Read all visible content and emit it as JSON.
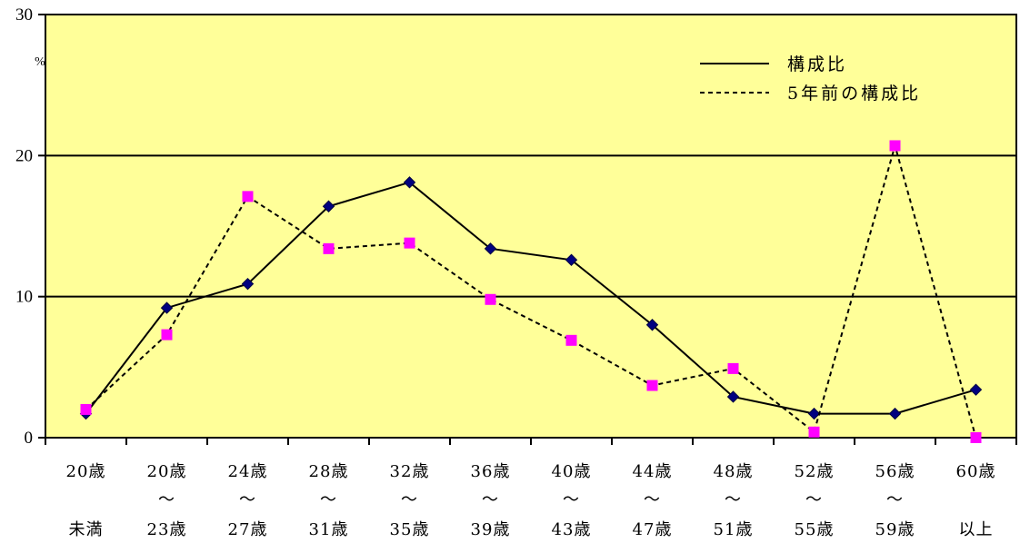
{
  "chart_data": {
    "type": "line",
    "unit_label": "%",
    "y_ticks": [
      "0",
      "10",
      "20",
      "30"
    ],
    "ylim": [
      0,
      30
    ],
    "grid": true,
    "legend_position": "top-right",
    "categories": [
      {
        "line1": "20歳",
        "line2": "",
        "line3": "未満"
      },
      {
        "line1": "20歳",
        "line2": "～",
        "line3": "23歳"
      },
      {
        "line1": "24歳",
        "line2": "～",
        "line3": "27歳"
      },
      {
        "line1": "28歳",
        "line2": "～",
        "line3": "31歳"
      },
      {
        "line1": "32歳",
        "line2": "～",
        "line3": "35歳"
      },
      {
        "line1": "36歳",
        "line2": "～",
        "line3": "39歳"
      },
      {
        "line1": "40歳",
        "line2": "～",
        "line3": "43歳"
      },
      {
        "line1": "44歳",
        "line2": "～",
        "line3": "47歳"
      },
      {
        "line1": "48歳",
        "line2": "～",
        "line3": "51歳"
      },
      {
        "line1": "52歳",
        "line2": "～",
        "line3": "55歳"
      },
      {
        "line1": "56歳",
        "line2": "～",
        "line3": "59歳"
      },
      {
        "line1": "60歳",
        "line2": "",
        "line3": "以上"
      }
    ],
    "series": [
      {
        "name": "構成比",
        "style": "solid",
        "marker": "diamond",
        "color": "#000080",
        "values": [
          1.7,
          9.2,
          10.9,
          16.4,
          18.1,
          13.4,
          12.6,
          8.0,
          2.9,
          1.7,
          1.7,
          3.4
        ]
      },
      {
        "name": "5年前の構成比",
        "style": "dashed",
        "marker": "square",
        "color": "#ff00ff",
        "values": [
          2.0,
          7.3,
          17.1,
          13.4,
          13.8,
          9.8,
          6.9,
          3.7,
          4.9,
          0.4,
          20.7,
          0.0
        ]
      }
    ],
    "plot_background": "#ffff99"
  }
}
